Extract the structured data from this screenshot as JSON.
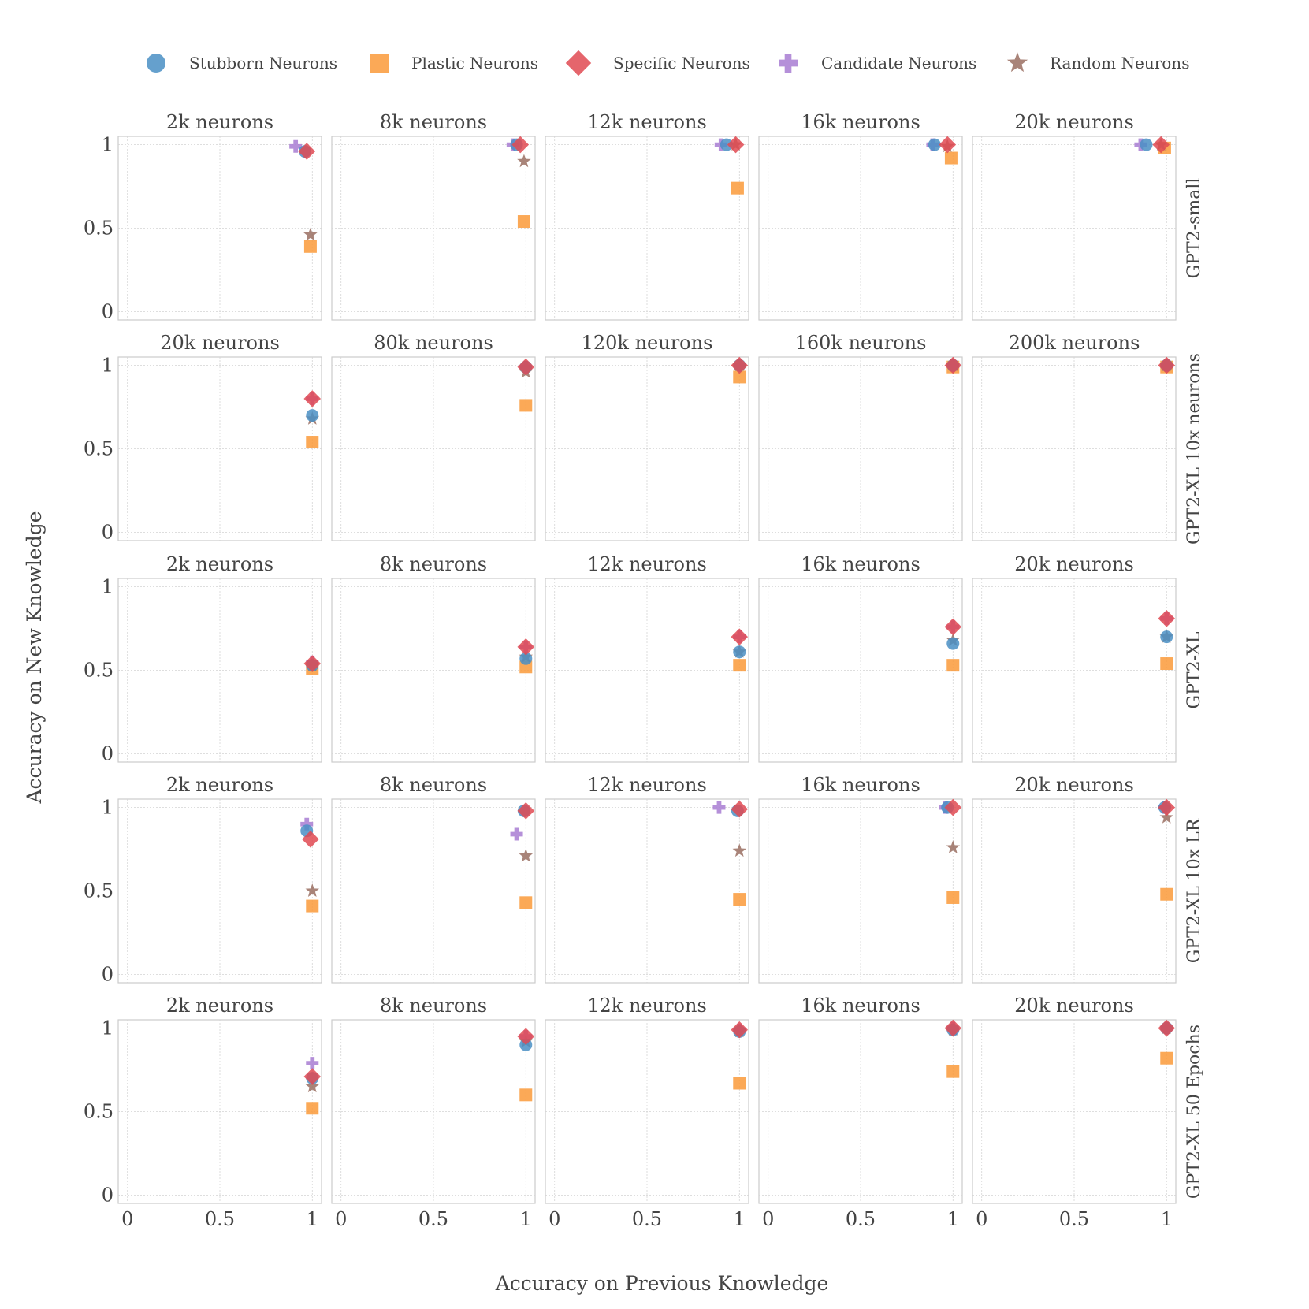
{
  "chart_data": {
    "type": "scatter",
    "xlabel": "Accuracy on Previous Knowledge",
    "ylabel": "Accuracy on New Knowledge",
    "xlim": [
      -0.05,
      1.05
    ],
    "ylim": [
      -0.05,
      1.05
    ],
    "x_ticks": [
      0,
      0.5,
      1
    ],
    "y_ticks": [
      0,
      0.5,
      1
    ],
    "x_tick_labels": [
      "0",
      "0.5",
      "1"
    ],
    "y_tick_labels": [
      "0",
      "0.5",
      "1"
    ],
    "grid": true,
    "legend_position": "top",
    "series": [
      {
        "key": "stubborn",
        "name": "Stubborn Neurons",
        "marker": "circle",
        "color": "#4a8fc4"
      },
      {
        "key": "plastic",
        "name": "Plastic Neurons",
        "marker": "square",
        "color": "#fa9a3a"
      },
      {
        "key": "specific",
        "name": "Specific Neurons",
        "marker": "diamond",
        "color": "#e04a52"
      },
      {
        "key": "candidate",
        "name": "Candidate Neurons",
        "marker": "plus",
        "color": "#a87cd2"
      },
      {
        "key": "random",
        "name": "Random Neurons",
        "marker": "star",
        "color": "#9a6e62"
      }
    ],
    "rows": [
      {
        "label": "GPT2-small",
        "panels": [
          {
            "title": "2k neurons",
            "points": {
              "stubborn": [
                0.96,
                0.96
              ],
              "plastic": [
                0.99,
                0.39
              ],
              "specific": [
                0.97,
                0.96
              ],
              "candidate": [
                0.91,
                0.99
              ],
              "random": [
                0.99,
                0.46
              ]
            }
          },
          {
            "title": "8k neurons",
            "points": {
              "stubborn": [
                0.95,
                1.0
              ],
              "plastic": [
                0.99,
                0.54
              ],
              "specific": [
                0.97,
                1.0
              ],
              "candidate": [
                0.93,
                1.0
              ],
              "random": [
                0.99,
                0.9
              ]
            }
          },
          {
            "title": "12k neurons",
            "points": {
              "stubborn": [
                0.93,
                1.0
              ],
              "plastic": [
                0.99,
                0.74
              ],
              "specific": [
                0.98,
                1.0
              ],
              "candidate": [
                0.9,
                1.0
              ],
              "random": [
                0.98,
                1.0
              ]
            }
          },
          {
            "title": "16k neurons",
            "points": {
              "stubborn": [
                0.9,
                1.0
              ],
              "plastic": [
                0.99,
                0.92
              ],
              "specific": [
                0.97,
                1.0
              ],
              "candidate": [
                0.89,
                1.0
              ],
              "random": [
                0.97,
                0.99
              ]
            }
          },
          {
            "title": "20k neurons",
            "points": {
              "stubborn": [
                0.89,
                1.0
              ],
              "plastic": [
                0.99,
                0.98
              ],
              "specific": [
                0.97,
                1.0
              ],
              "candidate": [
                0.86,
                1.0
              ],
              "random": [
                0.97,
                1.0
              ]
            }
          }
        ]
      },
      {
        "label": "GPT2-XL 10x neurons",
        "panels": [
          {
            "title": "20k neurons",
            "points": {
              "stubborn": [
                1.0,
                0.7
              ],
              "plastic": [
                1.0,
                0.54
              ],
              "specific": [
                1.0,
                0.8
              ],
              "candidate": [
                1.0,
                0.8
              ],
              "random": [
                1.0,
                0.68
              ]
            }
          },
          {
            "title": "80k neurons",
            "points": {
              "stubborn": [
                1.0,
                0.99
              ],
              "plastic": [
                1.0,
                0.76
              ],
              "specific": [
                1.0,
                0.99
              ],
              "candidate": [
                1.0,
                0.99
              ],
              "random": [
                1.0,
                0.96
              ]
            }
          },
          {
            "title": "120k neurons",
            "points": {
              "stubborn": [
                1.0,
                1.0
              ],
              "plastic": [
                1.0,
                0.93
              ],
              "specific": [
                1.0,
                1.0
              ],
              "candidate": [
                1.0,
                1.0
              ],
              "random": [
                1.0,
                1.0
              ]
            }
          },
          {
            "title": "160k neurons",
            "points": {
              "stubborn": [
                1.0,
                1.0
              ],
              "plastic": [
                1.0,
                0.99
              ],
              "specific": [
                1.0,
                1.0
              ],
              "candidate": [
                1.0,
                1.0
              ],
              "random": [
                1.0,
                1.0
              ]
            }
          },
          {
            "title": "200k neurons",
            "points": {
              "stubborn": [
                1.0,
                1.0
              ],
              "plastic": [
                1.0,
                0.99
              ],
              "specific": [
                1.0,
                1.0
              ],
              "candidate": [
                1.0,
                1.0
              ],
              "random": [
                1.0,
                1.0
              ]
            }
          }
        ]
      },
      {
        "label": "GPT2-XL",
        "panels": [
          {
            "title": "2k neurons",
            "points": {
              "stubborn": [
                1.0,
                0.53
              ],
              "plastic": [
                1.0,
                0.51
              ],
              "specific": [
                1.0,
                0.54
              ],
              "candidate": [
                1.0,
                0.55
              ],
              "random": [
                1.0,
                0.53
              ]
            }
          },
          {
            "title": "8k neurons",
            "points": {
              "stubborn": [
                1.0,
                0.57
              ],
              "plastic": [
                1.0,
                0.52
              ],
              "specific": [
                1.0,
                0.64
              ],
              "candidate": [
                1.0,
                0.64
              ],
              "random": [
                1.0,
                0.58
              ]
            }
          },
          {
            "title": "12k neurons",
            "points": {
              "stubborn": [
                1.0,
                0.61
              ],
              "plastic": [
                1.0,
                0.53
              ],
              "specific": [
                1.0,
                0.7
              ],
              "candidate": [
                1.0,
                0.7
              ],
              "random": [
                1.0,
                0.61
              ]
            }
          },
          {
            "title": "16k neurons",
            "points": {
              "stubborn": [
                1.0,
                0.66
              ],
              "plastic": [
                1.0,
                0.53
              ],
              "specific": [
                1.0,
                0.76
              ],
              "candidate": [
                1.0,
                0.76
              ],
              "random": [
                1.0,
                0.68
              ]
            }
          },
          {
            "title": "20k neurons",
            "points": {
              "stubborn": [
                1.0,
                0.7
              ],
              "plastic": [
                1.0,
                0.54
              ],
              "specific": [
                1.0,
                0.81
              ],
              "candidate": [
                1.0,
                0.81
              ],
              "random": [
                1.0,
                0.7
              ]
            }
          }
        ]
      },
      {
        "label": "GPT2-XL 10x LR",
        "panels": [
          {
            "title": "2k neurons",
            "points": {
              "stubborn": [
                0.97,
                0.86
              ],
              "plastic": [
                1.0,
                0.41
              ],
              "specific": [
                0.99,
                0.81
              ],
              "candidate": [
                0.97,
                0.9
              ],
              "random": [
                1.0,
                0.5
              ]
            }
          },
          {
            "title": "8k neurons",
            "points": {
              "stubborn": [
                0.99,
                0.98
              ],
              "plastic": [
                1.0,
                0.43
              ],
              "specific": [
                1.0,
                0.98
              ],
              "candidate": [
                0.95,
                0.84
              ],
              "random": [
                1.0,
                0.71
              ]
            }
          },
          {
            "title": "12k neurons",
            "points": {
              "stubborn": [
                0.99,
                0.98
              ],
              "plastic": [
                1.0,
                0.45
              ],
              "specific": [
                1.0,
                0.99
              ],
              "candidate": [
                0.89,
                1.0
              ],
              "random": [
                1.0,
                0.74
              ]
            }
          },
          {
            "title": "16k neurons",
            "points": {
              "stubborn": [
                0.97,
                1.0
              ],
              "plastic": [
                1.0,
                0.46
              ],
              "specific": [
                1.0,
                1.0
              ],
              "candidate": [
                0.96,
                1.0
              ],
              "random": [
                1.0,
                0.76
              ]
            }
          },
          {
            "title": "20k neurons",
            "points": {
              "stubborn": [
                0.99,
                1.0
              ],
              "plastic": [
                1.0,
                0.48
              ],
              "specific": [
                1.0,
                1.0
              ],
              "candidate": [
                0.99,
                1.0
              ],
              "random": [
                1.0,
                0.94
              ]
            }
          }
        ]
      },
      {
        "label": "GPT2-XL 50 Epochs",
        "panels": [
          {
            "title": "2k neurons",
            "points": {
              "stubborn": [
                1.0,
                0.7
              ],
              "plastic": [
                1.0,
                0.52
              ],
              "specific": [
                1.0,
                0.71
              ],
              "candidate": [
                1.0,
                0.79
              ],
              "random": [
                1.0,
                0.65
              ]
            }
          },
          {
            "title": "8k neurons",
            "points": {
              "stubborn": [
                1.0,
                0.9
              ],
              "plastic": [
                1.0,
                0.6
              ],
              "specific": [
                1.0,
                0.95
              ],
              "candidate": [
                1.0,
                0.95
              ],
              "random": [
                1.0,
                0.92
              ]
            }
          },
          {
            "title": "12k neurons",
            "points": {
              "stubborn": [
                1.0,
                0.98
              ],
              "plastic": [
                1.0,
                0.67
              ],
              "specific": [
                1.0,
                0.99
              ],
              "candidate": [
                1.0,
                0.99
              ],
              "random": [
                1.0,
                0.98
              ]
            }
          },
          {
            "title": "16k neurons",
            "points": {
              "stubborn": [
                1.0,
                0.99
              ],
              "plastic": [
                1.0,
                0.74
              ],
              "specific": [
                1.0,
                1.0
              ],
              "candidate": [
                1.0,
                1.0
              ],
              "random": [
                1.0,
                0.99
              ]
            }
          },
          {
            "title": "20k neurons",
            "points": {
              "stubborn": [
                1.0,
                1.0
              ],
              "plastic": [
                1.0,
                0.82
              ],
              "specific": [
                1.0,
                1.0
              ],
              "candidate": [
                1.0,
                1.0
              ],
              "random": [
                1.0,
                1.0
              ]
            }
          }
        ]
      }
    ]
  }
}
